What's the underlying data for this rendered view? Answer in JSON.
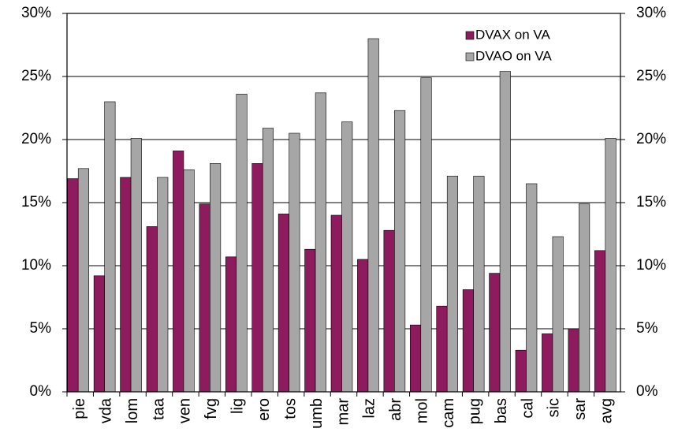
{
  "chart_data": {
    "type": "bar",
    "categories": [
      "pie",
      "vda",
      "lom",
      "taa",
      "ven",
      "fvg",
      "lig",
      "ero",
      "tos",
      "umb",
      "mar",
      "laz",
      "abr",
      "mol",
      "cam",
      "pug",
      "bas",
      "cal",
      "sic",
      "sar",
      "avg"
    ],
    "series": [
      {
        "name": "DVAX on VA",
        "color": "#8e1b5e",
        "values": [
          16.9,
          9.2,
          17.0,
          13.1,
          19.1,
          14.9,
          10.7,
          18.1,
          14.1,
          11.3,
          14.0,
          10.5,
          12.8,
          5.3,
          6.8,
          8.1,
          9.4,
          3.3,
          4.6,
          5.0,
          11.2
        ]
      },
      {
        "name": "DVAO on VA",
        "color": "#a6a6a6",
        "values": [
          17.7,
          23.0,
          20.1,
          17.0,
          17.6,
          18.1,
          23.6,
          20.9,
          20.5,
          23.7,
          21.4,
          28.0,
          22.3,
          24.9,
          17.1,
          17.1,
          25.4,
          16.5,
          12.3,
          14.9,
          20.1
        ]
      }
    ],
    "ylim": [
      0,
      30
    ],
    "yticks": [
      {
        "value": 0,
        "label": "0%"
      },
      {
        "value": 5,
        "label": "5%"
      },
      {
        "value": 10,
        "label": "10%"
      },
      {
        "value": 15,
        "label": "15%"
      },
      {
        "value": 20,
        "label": "20%"
      },
      {
        "value": 25,
        "label": "25%"
      },
      {
        "value": 30,
        "label": "30%"
      }
    ],
    "y2lim": [
      0,
      30
    ],
    "y2ticks": [
      {
        "value": 0,
        "label": "0%"
      },
      {
        "value": 5,
        "label": "5%"
      },
      {
        "value": 10,
        "label": "10%"
      },
      {
        "value": 15,
        "label": "15%"
      },
      {
        "value": 20,
        "label": "20%"
      },
      {
        "value": 25,
        "label": "25%"
      },
      {
        "value": 30,
        "label": "30%"
      }
    ],
    "grid": true,
    "legend": "top-right"
  }
}
